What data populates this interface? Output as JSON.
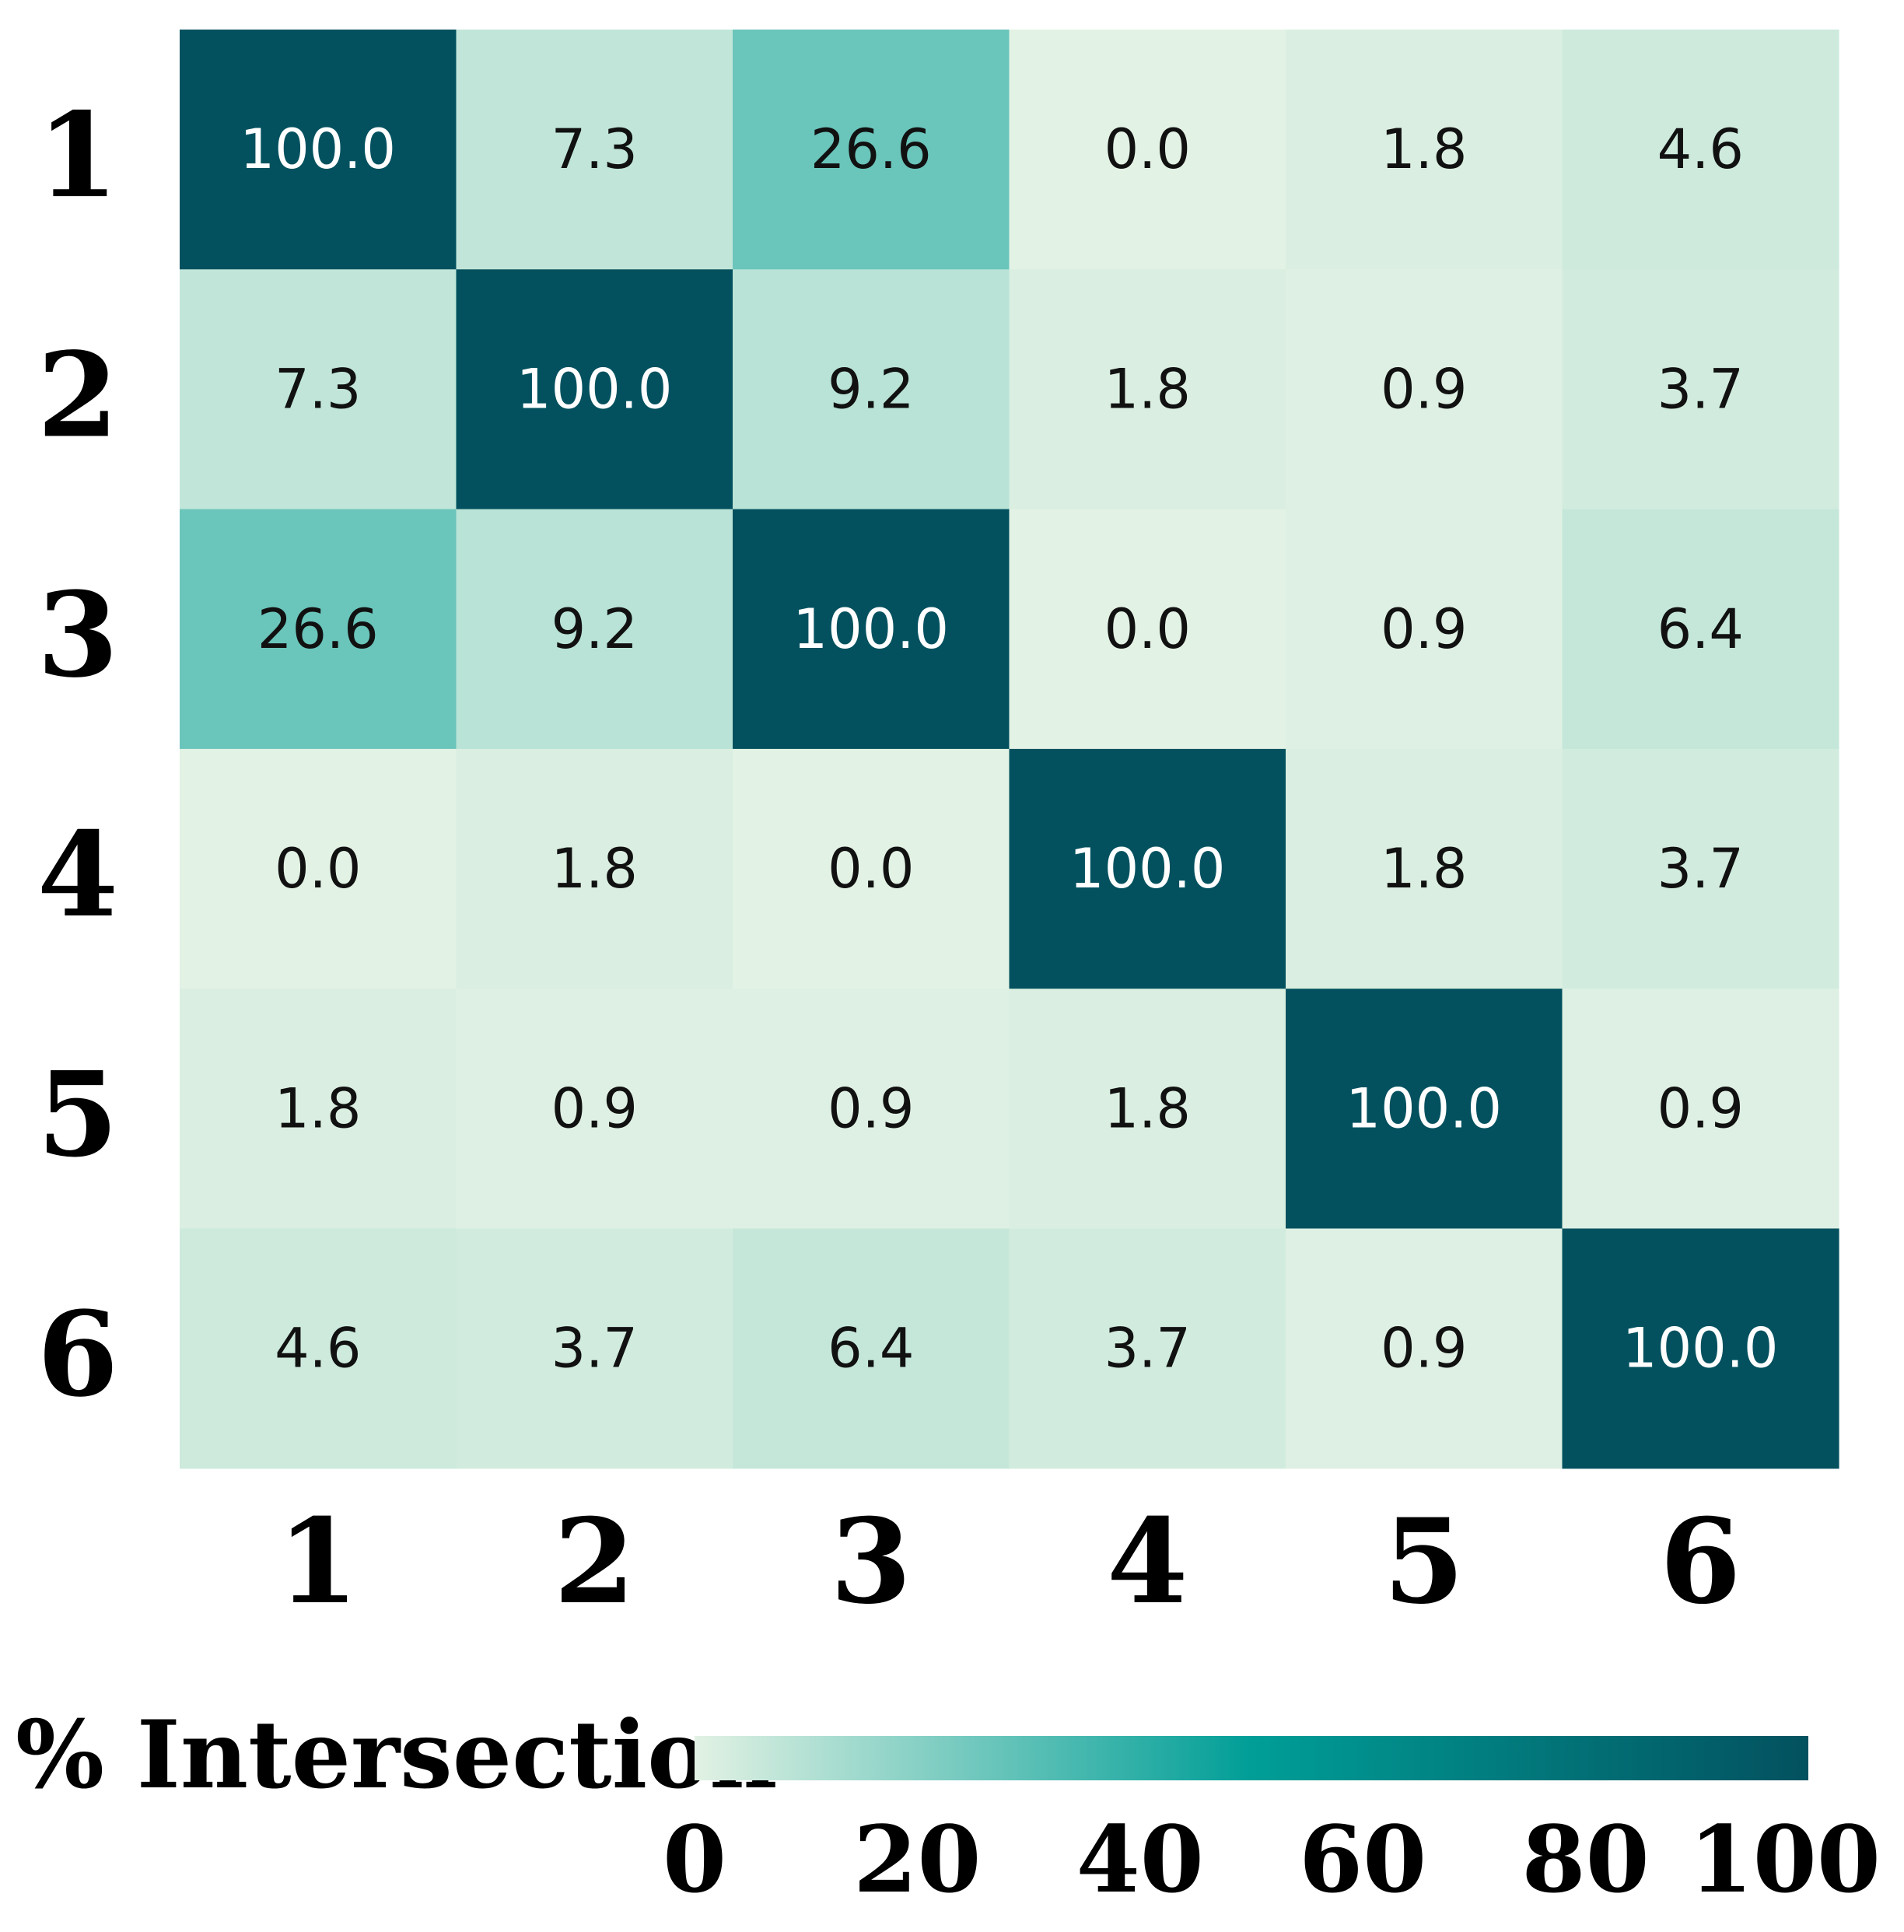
{
  "chart_data": {
    "type": "heatmap",
    "row_labels": [
      "1",
      "2",
      "3",
      "4",
      "5",
      "6"
    ],
    "col_labels": [
      "1",
      "2",
      "3",
      "4",
      "5",
      "6"
    ],
    "values": [
      [
        100.0,
        7.3,
        26.6,
        0.0,
        1.8,
        4.6
      ],
      [
        7.3,
        100.0,
        9.2,
        1.8,
        0.9,
        3.7
      ],
      [
        26.6,
        9.2,
        100.0,
        0.0,
        0.9,
        6.4
      ],
      [
        0.0,
        1.8,
        0.0,
        100.0,
        1.8,
        3.7
      ],
      [
        1.8,
        0.9,
        0.9,
        1.8,
        100.0,
        0.9
      ],
      [
        4.6,
        3.7,
        6.4,
        3.7,
        0.9,
        100.0
      ]
    ],
    "value_format": "0.0",
    "colorbar": {
      "title": "% Intersection",
      "range": [
        0,
        100
      ],
      "ticks": [
        "0",
        "20",
        "40",
        "60",
        "80",
        "100"
      ],
      "colors": [
        "#e2f2e4",
        "#009e97",
        "#03515f"
      ]
    }
  }
}
